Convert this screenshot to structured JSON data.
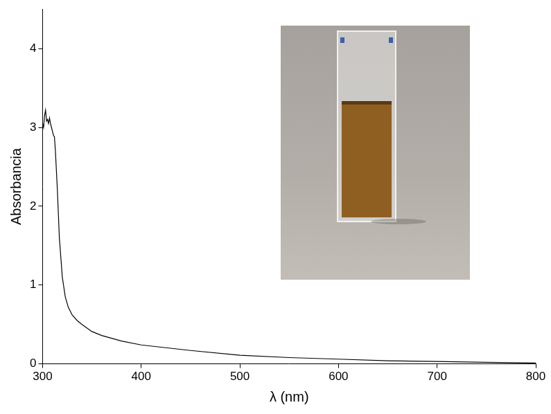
{
  "chart_data": {
    "type": "line",
    "x_label": "λ (nm)",
    "y_label": "Absorbancia",
    "color": "#000000",
    "grid": false,
    "x": [
      300,
      301,
      302,
      303,
      304,
      305,
      306,
      307,
      308,
      309,
      310,
      311,
      312,
      313,
      315,
      317,
      320,
      323,
      326,
      330,
      335,
      340,
      350,
      360,
      380,
      400,
      450,
      500,
      550,
      600,
      650,
      700,
      750,
      800
    ],
    "values": [
      3.05,
      3.0,
      3.15,
      3.22,
      3.08,
      3.1,
      3.05,
      3.12,
      3.05,
      3.0,
      2.95,
      2.9,
      2.88,
      2.7,
      2.2,
      1.6,
      1.1,
      0.85,
      0.72,
      0.62,
      0.55,
      0.5,
      0.41,
      0.36,
      0.29,
      0.24,
      0.17,
      0.11,
      0.08,
      0.06,
      0.04,
      0.03,
      0.02,
      0.01
    ],
    "xlim": [
      300,
      800
    ],
    "xticks": [
      300,
      400,
      500,
      600,
      700,
      800
    ],
    "ylim": [
      0,
      4.5
    ],
    "yticks": [
      0,
      1,
      2,
      3,
      4
    ]
  }
}
